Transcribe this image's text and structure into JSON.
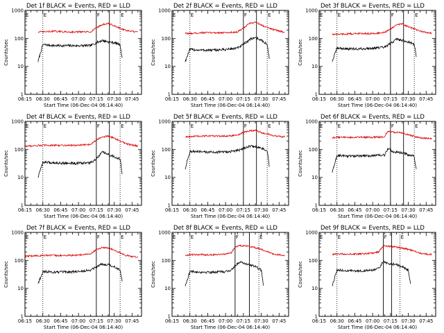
{
  "common": {
    "title_suffix": "BLACK = Events, RED = LLD",
    "xlabel": "Start Time (06-Dec-04 06:14:40)",
    "ylabel": "Counts/sec",
    "x_tick_labels": [
      "06:15",
      "06:30",
      "06:45",
      "07:00",
      "07:15",
      "07:30",
      "07:45"
    ],
    "y_tick_labels": [
      "1",
      "10",
      "100",
      "1000"
    ],
    "markers": [
      "F",
      "E",
      "E"
    ],
    "colors": {
      "events": "#000000",
      "lld": "#dd0000"
    }
  },
  "chart_data": [
    {
      "type": "line",
      "title": "Det 1f BLACK = Events, RED = LLD",
      "xlabel": "Start Time (06-Dec-04 06:14:40)",
      "ylabel": "Counts/sec",
      "yscale": "log",
      "ylim": [
        1,
        1000
      ],
      "xlim": [
        "06:15",
        "07:53"
      ],
      "vertical_lines": {
        "solid": [
          "07:15",
          "07:26"
        ],
        "dotted": [
          "06:30",
          "07:35"
        ]
      },
      "series": [
        {
          "name": "BLACK = Events",
          "color": "#000000",
          "x": [
            "06:26",
            "06:30",
            "06:40",
            "06:50",
            "07:00",
            "07:10",
            "07:15",
            "07:20",
            "07:25",
            "07:30",
            "07:35",
            "07:37"
          ],
          "y": [
            15,
            60,
            55,
            55,
            55,
            55,
            70,
            85,
            75,
            70,
            60,
            15
          ]
        },
        {
          "name": "RED = LLD",
          "color": "#dd0000",
          "x": [
            "06:26",
            "06:30",
            "06:40",
            "06:50",
            "07:00",
            "07:10",
            "07:15",
            "07:20",
            "07:25",
            "07:30",
            "07:40",
            "07:50"
          ],
          "y": [
            170,
            170,
            180,
            170,
            170,
            170,
            240,
            310,
            340,
            280,
            190,
            165
          ]
        }
      ]
    },
    {
      "type": "line",
      "title": "Det 2f BLACK = Events, RED = LLD",
      "xlabel": "Start Time (06-Dec-04 06:14:40)",
      "ylabel": "Counts/sec",
      "yscale": "log",
      "ylim": [
        1,
        1000
      ],
      "xlim": [
        "06:15",
        "07:53"
      ],
      "vertical_lines": {
        "solid": [
          "07:15",
          "07:26"
        ],
        "dotted": [
          "06:30",
          "07:35"
        ]
      },
      "series": [
        {
          "name": "BLACK = Events",
          "color": "#000000",
          "x": [
            "06:26",
            "06:30",
            "06:40",
            "06:50",
            "07:00",
            "07:10",
            "07:15",
            "07:20",
            "07:25",
            "07:30",
            "07:35",
            "07:37"
          ],
          "y": [
            15,
            40,
            38,
            38,
            40,
            45,
            60,
            90,
            110,
            85,
            60,
            15
          ]
        },
        {
          "name": "RED = LLD",
          "color": "#dd0000",
          "x": [
            "06:26",
            "06:30",
            "06:40",
            "06:50",
            "07:00",
            "07:10",
            "07:15",
            "07:20",
            "07:25",
            "07:30",
            "07:40",
            "07:50"
          ],
          "y": [
            150,
            150,
            160,
            160,
            160,
            170,
            230,
            340,
            380,
            300,
            210,
            160
          ]
        }
      ]
    },
    {
      "type": "line",
      "title": "Det 3f BLACK = Events, RED = LLD",
      "xlabel": "Start Time (06-Dec-04 06:14:40)",
      "ylabel": "Counts/sec",
      "yscale": "log",
      "ylim": [
        1,
        1000
      ],
      "xlim": [
        "06:15",
        "07:53"
      ],
      "vertical_lines": {
        "solid": [
          "07:15",
          "07:26"
        ],
        "dotted": [
          "06:30",
          "07:35"
        ]
      },
      "series": [
        {
          "name": "BLACK = Events",
          "color": "#000000",
          "x": [
            "06:26",
            "06:30",
            "06:40",
            "06:50",
            "07:00",
            "07:10",
            "07:15",
            "07:20",
            "07:25",
            "07:30",
            "07:35",
            "07:37"
          ],
          "y": [
            15,
            45,
            42,
            42,
            45,
            48,
            65,
            95,
            85,
            75,
            60,
            20
          ]
        },
        {
          "name": "RED = LLD",
          "color": "#dd0000",
          "x": [
            "06:26",
            "06:30",
            "06:40",
            "06:50",
            "07:00",
            "07:10",
            "07:15",
            "07:20",
            "07:25",
            "07:30",
            "07:40",
            "07:50"
          ],
          "y": [
            140,
            140,
            145,
            150,
            150,
            160,
            220,
            300,
            330,
            260,
            180,
            150
          ]
        }
      ]
    },
    {
      "type": "line",
      "title": "Det 4f BLACK = Events, RED = LLD",
      "xlabel": "Start Time (06-Dec-04 06:14:40)",
      "ylabel": "Counts/sec",
      "yscale": "log",
      "ylim": [
        1,
        1000
      ],
      "xlim": [
        "06:15",
        "07:53"
      ],
      "vertical_lines": {
        "solid": [
          "07:15",
          "07:26"
        ],
        "dotted": [
          "06:30",
          "07:35"
        ]
      },
      "series": [
        {
          "name": "BLACK = Events",
          "color": "#000000",
          "x": [
            "06:26",
            "06:30",
            "06:40",
            "06:50",
            "07:00",
            "07:10",
            "07:15",
            "07:20",
            "07:25",
            "07:30",
            "07:35",
            "07:37"
          ],
          "y": [
            10,
            35,
            33,
            32,
            32,
            33,
            45,
            80,
            65,
            55,
            45,
            10
          ]
        },
        {
          "name": "RED = LLD",
          "color": "#dd0000",
          "x": [
            "06:15",
            "06:30",
            "06:40",
            "06:50",
            "07:00",
            "07:10",
            "07:15",
            "07:20",
            "07:25",
            "07:30",
            "07:40",
            "07:50"
          ],
          "y": [
            130,
            140,
            140,
            140,
            140,
            150,
            220,
            280,
            300,
            250,
            160,
            130
          ]
        }
      ]
    },
    {
      "type": "line",
      "title": "Det 5f BLACK = Events, RED = LLD",
      "xlabel": "Start Time (06-Dec-04 06:14:40)",
      "ylabel": "Counts/sec",
      "yscale": "log",
      "ylim": [
        1,
        1000
      ],
      "xlim": [
        "06:15",
        "07:53"
      ],
      "vertical_lines": {
        "solid": [
          "07:15",
          "07:26"
        ],
        "dotted": [
          "06:30",
          "07:35"
        ]
      },
      "series": [
        {
          "name": "BLACK = Events",
          "color": "#000000",
          "x": [
            "06:26",
            "06:30",
            "06:40",
            "06:50",
            "07:00",
            "07:10",
            "07:15",
            "07:20",
            "07:25",
            "07:30",
            "07:35",
            "07:37"
          ],
          "y": [
            20,
            85,
            80,
            80,
            80,
            90,
            110,
            130,
            125,
            110,
            90,
            20
          ]
        },
        {
          "name": "RED = LLD",
          "color": "#dd0000",
          "x": [
            "06:26",
            "06:30",
            "06:40",
            "06:50",
            "07:00",
            "07:10",
            "07:15",
            "07:20",
            "07:25",
            "07:30",
            "07:40",
            "07:50"
          ],
          "y": [
            280,
            290,
            300,
            300,
            300,
            320,
            400,
            460,
            480,
            400,
            310,
            280
          ]
        }
      ]
    },
    {
      "type": "line",
      "title": "Det 6f BLACK = Events, RED = LLD",
      "xlabel": "Start Time (06-Dec-04 06:14:40)",
      "ylabel": "Counts/sec",
      "yscale": "log",
      "ylim": [
        1,
        1000
      ],
      "xlim": [
        "06:15",
        "07:53"
      ],
      "vertical_lines": {
        "solid": [
          "07:15",
          "07:26"
        ],
        "dotted": [
          "06:30",
          "07:35"
        ]
      },
      "series": [
        {
          "name": "BLACK = Events",
          "color": "#000000",
          "x": [
            "06:26",
            "06:30",
            "06:40",
            "06:50",
            "07:00",
            "07:10",
            "07:13",
            "07:16",
            "07:25",
            "07:30",
            "07:35",
            "07:37"
          ],
          "y": [
            15,
            60,
            58,
            58,
            60,
            62,
            110,
            85,
            75,
            65,
            55,
            15
          ]
        },
        {
          "name": "RED = LLD",
          "color": "#dd0000",
          "x": [
            "06:26",
            "06:30",
            "06:40",
            "06:50",
            "07:00",
            "07:10",
            "07:13",
            "07:16",
            "07:25",
            "07:30",
            "07:40",
            "07:50"
          ],
          "y": [
            260,
            270,
            270,
            270,
            270,
            280,
            450,
            420,
            380,
            330,
            260,
            240
          ]
        }
      ]
    },
    {
      "type": "line",
      "title": "Det 7f BLACK = Events, RED = LLD",
      "xlabel": "Start Time (06-Dec-04 06:14:40)",
      "ylabel": "Counts/sec",
      "yscale": "log",
      "ylim": [
        1,
        1000
      ],
      "xlim": [
        "06:15",
        "07:53"
      ],
      "vertical_lines": {
        "solid": [
          "07:15",
          "07:26"
        ],
        "dotted": [
          "06:30",
          "07:35"
        ]
      },
      "series": [
        {
          "name": "BLACK = Events",
          "color": "#000000",
          "x": [
            "06:26",
            "06:30",
            "06:40",
            "06:50",
            "07:00",
            "07:10",
            "07:15",
            "07:20",
            "07:25",
            "07:30",
            "07:35",
            "07:37"
          ],
          "y": [
            15,
            40,
            38,
            38,
            40,
            45,
            60,
            75,
            70,
            60,
            45,
            15
          ]
        },
        {
          "name": "RED = LLD",
          "color": "#dd0000",
          "x": [
            "06:15",
            "06:30",
            "06:40",
            "06:50",
            "07:00",
            "07:10",
            "07:15",
            "07:20",
            "07:25",
            "07:30",
            "07:40",
            "07:50"
          ],
          "y": [
            140,
            150,
            150,
            150,
            155,
            170,
            240,
            290,
            280,
            230,
            150,
            130
          ]
        }
      ]
    },
    {
      "type": "line",
      "title": "Det 8f BLACK = Events, RED = LLD",
      "xlabel": "Start Time (06-Dec-04 06:14:40)",
      "ylabel": "Counts/sec",
      "yscale": "log",
      "ylim": [
        1,
        1000
      ],
      "xlim": [
        "06:15",
        "07:53"
      ],
      "vertical_lines": {
        "solid": [
          "07:08",
          "07:20"
        ],
        "dotted": [
          "06:30",
          "07:28"
        ]
      },
      "series": [
        {
          "name": "BLACK = Events",
          "color": "#000000",
          "x": [
            "06:26",
            "06:30",
            "06:40",
            "06:50",
            "07:00",
            "07:05",
            "07:08",
            "07:12",
            "07:20",
            "07:25",
            "07:30",
            "07:32"
          ],
          "y": [
            12,
            40,
            38,
            38,
            40,
            45,
            65,
            90,
            70,
            60,
            45,
            12
          ]
        },
        {
          "name": "RED = LLD",
          "color": "#dd0000",
          "x": [
            "06:26",
            "06:30",
            "06:40",
            "06:50",
            "07:00",
            "07:05",
            "07:08",
            "07:12",
            "07:20",
            "07:30",
            "07:40",
            "07:50"
          ],
          "y": [
            150,
            160,
            160,
            160,
            170,
            190,
            300,
            340,
            320,
            250,
            170,
            150
          ]
        }
      ]
    },
    {
      "type": "line",
      "title": "Det 9f BLACK = Events, RED = LLD",
      "xlabel": "Start Time (06-Dec-04 06:14:40)",
      "ylabel": "Counts/sec",
      "yscale": "log",
      "ylim": [
        1,
        1000
      ],
      "xlim": [
        "06:15",
        "07:53"
      ],
      "vertical_lines": {
        "solid": [
          "07:09",
          "07:16"
        ],
        "dotted": [
          "06:30",
          "07:23"
        ]
      },
      "series": [
        {
          "name": "BLACK = Events",
          "color": "#000000",
          "x": [
            "06:26",
            "06:30",
            "06:40",
            "06:50",
            "07:00",
            "07:05",
            "07:09",
            "07:12",
            "07:20",
            "07:25",
            "07:30",
            "07:32"
          ],
          "y": [
            12,
            45,
            42,
            42,
            45,
            50,
            90,
            80,
            70,
            60,
            45,
            12
          ]
        },
        {
          "name": "RED = LLD",
          "color": "#dd0000",
          "x": [
            "06:26",
            "06:30",
            "06:40",
            "06:50",
            "07:00",
            "07:05",
            "07:09",
            "07:12",
            "07:20",
            "07:30",
            "07:40",
            "07:50"
          ],
          "y": [
            160,
            170,
            170,
            170,
            180,
            200,
            330,
            320,
            300,
            250,
            180,
            160
          ]
        }
      ]
    }
  ]
}
